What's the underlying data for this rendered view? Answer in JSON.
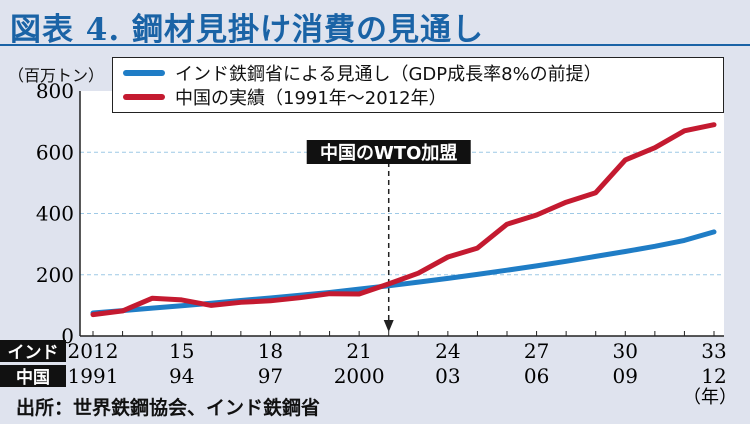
{
  "title": "図表 4. 鋼材見掛け消費の見通し",
  "source": "出所：世界鉄鋼協会、インド鉄鋼省",
  "chart_data": {
    "type": "line",
    "ylabel": "（百万トン）",
    "ylim": [
      0,
      800
    ],
    "yticks": [
      0,
      200,
      400,
      600,
      800
    ],
    "grid": true,
    "x": [
      0,
      1,
      2,
      3,
      4,
      5,
      6,
      7,
      8,
      9,
      10,
      11,
      12,
      13,
      14,
      15,
      16,
      17,
      18,
      19,
      20,
      21
    ],
    "x_axes": [
      {
        "name": "インド",
        "ticks": [
          "2012",
          "15",
          "18",
          "21",
          "24",
          "27",
          "30",
          "33"
        ],
        "positions": [
          0,
          3,
          6,
          9,
          12,
          15,
          18,
          21
        ]
      },
      {
        "name": "中国",
        "ticks": [
          "1991",
          "94",
          "97",
          "2000",
          "03",
          "06",
          "09",
          "12"
        ],
        "positions": [
          0,
          3,
          6,
          9,
          12,
          15,
          18,
          21
        ]
      }
    ],
    "xunit": "（年）",
    "legend_position": "top",
    "annotation": {
      "text": "中国のWTO加盟",
      "x": 10
    },
    "series": [
      {
        "name": "インド鉄鋼省による見通し（GDP成長率8%の前提）",
        "color": "#1f7dc6",
        "values": [
          75,
          83,
          91,
          99,
          107,
          116,
          124,
          133,
          142,
          153,
          164,
          176,
          188,
          201,
          215,
          229,
          244,
          260,
          276,
          293,
          312,
          340
        ]
      },
      {
        "name": "中国の実績（1991年〜2012年）",
        "color": "#c41a30",
        "values": [
          70,
          82,
          123,
          118,
          100,
          110,
          115,
          125,
          138,
          137,
          170,
          205,
          258,
          287,
          365,
          395,
          437,
          468,
          575,
          615,
          670,
          690
        ]
      }
    ]
  }
}
